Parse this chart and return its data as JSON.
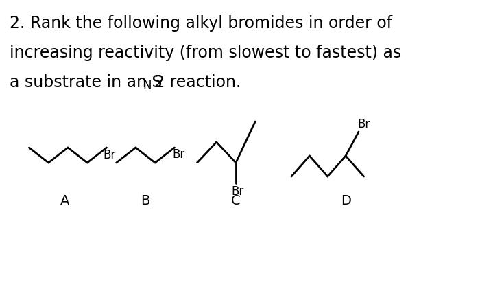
{
  "bg_color": "#ffffff",
  "text_color": "#000000",
  "title_line1": "2. Rank the following alkyl bromides in order of",
  "title_line2": "increasing reactivity (from slowest to fastest) as",
  "title_line3_parts": [
    "a substrate in an S",
    "N",
    "2 reaction."
  ],
  "labels": [
    "A",
    "B",
    "C",
    "D"
  ],
  "font_size_title": 17,
  "font_size_label": 14,
  "font_size_br": 12,
  "line_color": "#000000",
  "line_width": 2.0
}
